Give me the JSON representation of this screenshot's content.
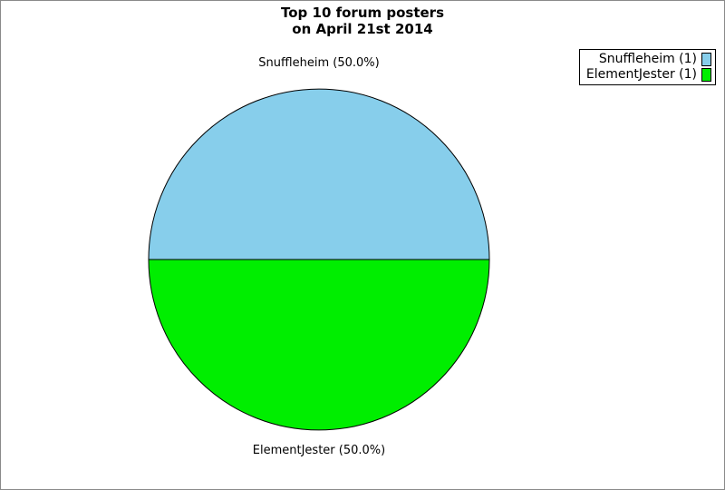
{
  "window": {
    "background_color": "#FFFFFF",
    "border_color": "#8A8A8A"
  },
  "title": {
    "line1": "Top 10 forum posters",
    "line2": "on April 21st 2014"
  },
  "chart_data": {
    "type": "pie",
    "title": "Top 10 forum posters on April 21st 2014",
    "legend_position": "top-right",
    "outline_color": "#000000",
    "total": 2,
    "slices": [
      {
        "label": "Snuffleheim",
        "value": 1,
        "percent": 50.0,
        "color": "#87CEEB",
        "callout": "Snuffleheim (50.0%)",
        "legend_label": "Snuffleheim (1)"
      },
      {
        "label": "ElementJester",
        "value": 1,
        "percent": 50.0,
        "color": "#00EE00",
        "callout": "ElementJester (50.0%)",
        "legend_label": "ElementJester (1)"
      }
    ]
  }
}
